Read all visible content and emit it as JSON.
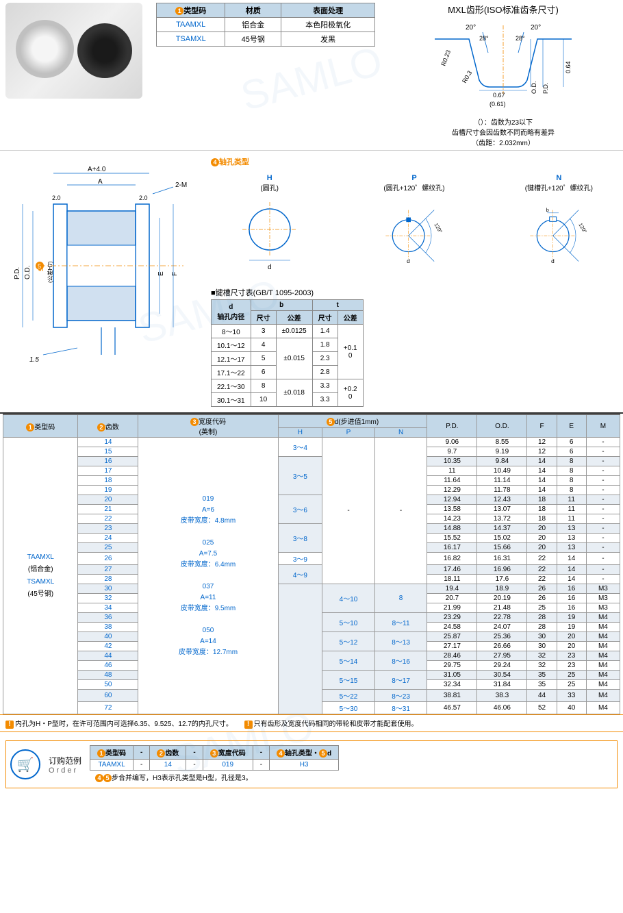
{
  "spec_table": {
    "headers": [
      "类型码",
      "材质",
      "表面处理"
    ],
    "badge": "1",
    "rows": [
      [
        "TAAMXL",
        "铝合金",
        "本色阳极氧化"
      ],
      [
        "TSAMXL",
        "45号钢",
        "发黑"
      ]
    ]
  },
  "mxl": {
    "title": "MXL齿形(ISO标准齿条尺寸)",
    "angles": [
      "20°",
      "20°",
      "28°",
      "28°"
    ],
    "dims": [
      "R0.23",
      "R0.3",
      "0.67",
      "(0.61)",
      "O.D.",
      "P.D.",
      "0.64"
    ],
    "notes": [
      "（）：齿数为23以下",
      "齿槽尺寸会因齿数不同而略有差异",
      "（齿距：2.032mm）"
    ]
  },
  "tech_labels": [
    "A+4.0",
    "A",
    "2.0",
    "2.0",
    "2-M",
    "P.D.",
    "O.D.",
    "d",
    "(公差H7)",
    "E",
    "F",
    "1.5",
    "5"
  ],
  "bore": {
    "title_num": "4",
    "title": "轴孔类型",
    "types": [
      {
        "code": "H",
        "desc": "(圆孔)",
        "label": "d"
      },
      {
        "code": "P",
        "desc": "(圆孔+120゜螺纹孔)",
        "label": "d",
        "angle": "120°"
      },
      {
        "code": "N",
        "desc": "(键槽孔+120゜螺纹孔)",
        "label": "d",
        "angle": "120°",
        "b": "b"
      }
    ]
  },
  "key_table": {
    "title": "■键槽尺寸表(GB/T 1095-2003)",
    "headers": [
      "d\n轴孔内径",
      "b",
      "t"
    ],
    "sub": [
      "尺寸",
      "公差",
      "尺寸",
      "公差"
    ],
    "rows": [
      [
        "8～10",
        "3",
        "±0.0125",
        "1.4",
        ""
      ],
      [
        "10.1～12",
        "4",
        "",
        "1.8",
        "+0.1\n0"
      ],
      [
        "12.1～17",
        "5",
        "±0.015",
        "2.3",
        ""
      ],
      [
        "17.1～22",
        "6",
        "",
        "2.8",
        ""
      ],
      [
        "22.1～30",
        "8",
        "",
        "3.3",
        "+0.2\n0"
      ],
      [
        "30.1～31",
        "10",
        "±0.018",
        "3.3",
        ""
      ]
    ]
  },
  "main_table": {
    "headers": {
      "c1": {
        "num": "1",
        "text": "类型码"
      },
      "c2": {
        "num": "2",
        "text": "齿数"
      },
      "c3": {
        "num": "3",
        "text": "宽度代码",
        "sub": "(英制)"
      },
      "c4": {
        "num": "5",
        "text": "d(步进值1mm)"
      },
      "c4sub": [
        "H",
        "P",
        "N"
      ],
      "rest": [
        "P.D.",
        "O.D.",
        "F",
        "E",
        "M"
      ]
    },
    "type_codes": [
      "TAAMXL",
      "(铝合金)",
      "TSAMXL",
      "(45号钢)"
    ],
    "width_codes": [
      "019",
      "A=6",
      "皮带宽度：4.8mm",
      "",
      "025",
      "A=7.5",
      "皮带宽度：6.4mm",
      "",
      "037",
      "A=11",
      "皮带宽度：9.5mm",
      "",
      "050",
      "A=14",
      "皮带宽度：12.7mm"
    ],
    "rows": [
      {
        "teeth": "14",
        "h": "3～4",
        "p": "",
        "n": "",
        "pd": "9.06",
        "od": "8.55",
        "f": "12",
        "e": "6",
        "m": "-"
      },
      {
        "teeth": "15",
        "h": "",
        "p": "",
        "n": "",
        "pd": "9.7",
        "od": "9.19",
        "f": "12",
        "e": "6",
        "m": "-"
      },
      {
        "teeth": "16",
        "h": "3～5",
        "p": "",
        "n": "",
        "pd": "10.35",
        "od": "9.84",
        "f": "14",
        "e": "8",
        "m": "-",
        "hl": true
      },
      {
        "teeth": "17",
        "h": "",
        "p": "",
        "n": "",
        "pd": "11",
        "od": "10.49",
        "f": "14",
        "e": "8",
        "m": "-"
      },
      {
        "teeth": "18",
        "h": "",
        "p": "",
        "n": "",
        "pd": "11.64",
        "od": "11.14",
        "f": "14",
        "e": "8",
        "m": "-"
      },
      {
        "teeth": "19",
        "h": "",
        "p": "",
        "n": "",
        "pd": "12.29",
        "od": "11.78",
        "f": "14",
        "e": "8",
        "m": "-"
      },
      {
        "teeth": "20",
        "h": "3～6",
        "p": "",
        "n": "",
        "pd": "12.94",
        "od": "12.43",
        "f": "18",
        "e": "11",
        "m": "-",
        "hl": true
      },
      {
        "teeth": "21",
        "h": "",
        "p": "-",
        "n": "-",
        "pd": "13.58",
        "od": "13.07",
        "f": "18",
        "e": "11",
        "m": "-"
      },
      {
        "teeth": "22",
        "h": "",
        "p": "",
        "n": "",
        "pd": "14.23",
        "od": "13.72",
        "f": "18",
        "e": "11",
        "m": "-"
      },
      {
        "teeth": "23",
        "h": "3～8",
        "p": "",
        "n": "",
        "pd": "14.88",
        "od": "14.37",
        "f": "20",
        "e": "13",
        "m": "-",
        "hl": true
      },
      {
        "teeth": "24",
        "h": "",
        "p": "",
        "n": "",
        "pd": "15.52",
        "od": "15.02",
        "f": "20",
        "e": "13",
        "m": "-"
      },
      {
        "teeth": "25",
        "h": "",
        "p": "",
        "n": "",
        "pd": "16.17",
        "od": "15.66",
        "f": "20",
        "e": "13",
        "m": "-",
        "hl": true
      },
      {
        "teeth": "26",
        "h": "3～9",
        "p": "",
        "n": "",
        "pd": "16.82",
        "od": "16.31",
        "f": "22",
        "e": "14",
        "m": "-"
      },
      {
        "teeth": "27",
        "h": "4～9",
        "p": "",
        "n": "",
        "pd": "17.46",
        "od": "16.96",
        "f": "22",
        "e": "14",
        "m": "-",
        "hl": true
      },
      {
        "teeth": "28",
        "h": "",
        "p": "",
        "n": "",
        "pd": "18.11",
        "od": "17.6",
        "f": "22",
        "e": "14",
        "m": "-"
      },
      {
        "teeth": "30",
        "h": "",
        "p": "4～10",
        "n": "8",
        "pd": "19.4",
        "od": "18.9",
        "f": "26",
        "e": "16",
        "m": "M3",
        "hl": true
      },
      {
        "teeth": "32",
        "h": "",
        "p": "",
        "n": "",
        "pd": "20.7",
        "od": "20.19",
        "f": "26",
        "e": "16",
        "m": "M3"
      },
      {
        "teeth": "34",
        "h": "",
        "p": "",
        "n": "",
        "pd": "21.99",
        "od": "21.48",
        "f": "25",
        "e": "16",
        "m": "M3"
      },
      {
        "teeth": "36",
        "h": "",
        "p": "5～10",
        "n": "8～11",
        "pd": "23.29",
        "od": "22.78",
        "f": "28",
        "e": "19",
        "m": "M4",
        "hl": true
      },
      {
        "teeth": "38",
        "h": "",
        "p": "",
        "n": "",
        "pd": "24.58",
        "od": "24.07",
        "f": "28",
        "e": "19",
        "m": "M4"
      },
      {
        "teeth": "40",
        "h": "",
        "p": "5～12",
        "n": "8～13",
        "pd": "25.87",
        "od": "25.36",
        "f": "30",
        "e": "20",
        "m": "M4",
        "hl": true
      },
      {
        "teeth": "42",
        "h": "",
        "p": "",
        "n": "",
        "pd": "27.17",
        "od": "26.66",
        "f": "30",
        "e": "20",
        "m": "M4"
      },
      {
        "teeth": "44",
        "h": "",
        "p": "5～14",
        "n": "8～16",
        "pd": "28.46",
        "od": "27.95",
        "f": "32",
        "e": "23",
        "m": "M4",
        "hl": true
      },
      {
        "teeth": "46",
        "h": "",
        "p": "",
        "n": "",
        "pd": "29.75",
        "od": "29.24",
        "f": "32",
        "e": "23",
        "m": "M4"
      },
      {
        "teeth": "48",
        "h": "",
        "p": "5～15",
        "n": "8～17",
        "pd": "31.05",
        "od": "30.54",
        "f": "35",
        "e": "25",
        "m": "M4",
        "hl": true
      },
      {
        "teeth": "50",
        "h": "",
        "p": "",
        "n": "",
        "pd": "32.34",
        "od": "31.84",
        "f": "35",
        "e": "25",
        "m": "M4"
      },
      {
        "teeth": "60",
        "h": "",
        "p": "5～22",
        "n": "8～23",
        "pd": "38.81",
        "od": "38.3",
        "f": "44",
        "e": "33",
        "m": "M4",
        "hl": true
      },
      {
        "teeth": "72",
        "h": "",
        "p": "5～30",
        "n": "8～31",
        "pd": "46.57",
        "od": "46.06",
        "f": "52",
        "e": "40",
        "m": "M4"
      }
    ]
  },
  "notes": {
    "n1": "内孔为H・P型时，在许可范围内可选择6.35、9.525、12.7的内孔尺寸。",
    "n2": "只有齿形及宽度代码相同的带轮和皮带才能配套使用。"
  },
  "order": {
    "label": "订购范例",
    "label_en": "Order",
    "headers": [
      {
        "n": "1",
        "t": "类型码"
      },
      {
        "n": "2",
        "t": "齿数"
      },
      {
        "n": "3",
        "t": "宽度代码"
      },
      {
        "n": "4",
        "t": "轴孔类型・",
        "n2": "5",
        "t2": "d"
      }
    ],
    "sep": "-",
    "row": [
      "TAAMXL",
      "14",
      "019",
      "H3"
    ],
    "foot_nums": [
      "4",
      "5"
    ],
    "foot": "步合并编写，H3表示孔类型是H型，孔径是3。"
  },
  "colors": {
    "header_bg": "#c3d8e8",
    "orange": "#f38b00",
    "blue": "#0066cc",
    "border": "#888888"
  }
}
